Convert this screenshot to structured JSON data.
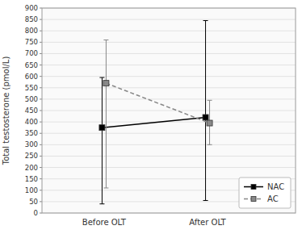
{
  "chart_data": {
    "type": "line",
    "categories": [
      "Before OLT",
      "After OLT"
    ],
    "ylabel": "Total testosterone (pmol/L)",
    "ylim": [
      0,
      900
    ],
    "yticks": [
      0,
      50,
      100,
      150,
      200,
      250,
      300,
      350,
      400,
      450,
      500,
      550,
      600,
      650,
      700,
      750,
      800,
      850,
      900
    ],
    "grid": true,
    "legend": "lower right",
    "series": [
      {
        "name": "NAC",
        "color": "#000000",
        "marker": "square",
        "line_style": "solid",
        "values": [
          375,
          420
        ],
        "ci_low": [
          40,
          55
        ],
        "ci_high": [
          595,
          845
        ]
      },
      {
        "name": "AC",
        "color": "#888888",
        "marker": "square",
        "line_style": "dashed",
        "values": [
          570,
          395
        ],
        "ci_low": [
          110,
          300
        ],
        "ci_high": [
          760,
          495
        ]
      }
    ]
  }
}
